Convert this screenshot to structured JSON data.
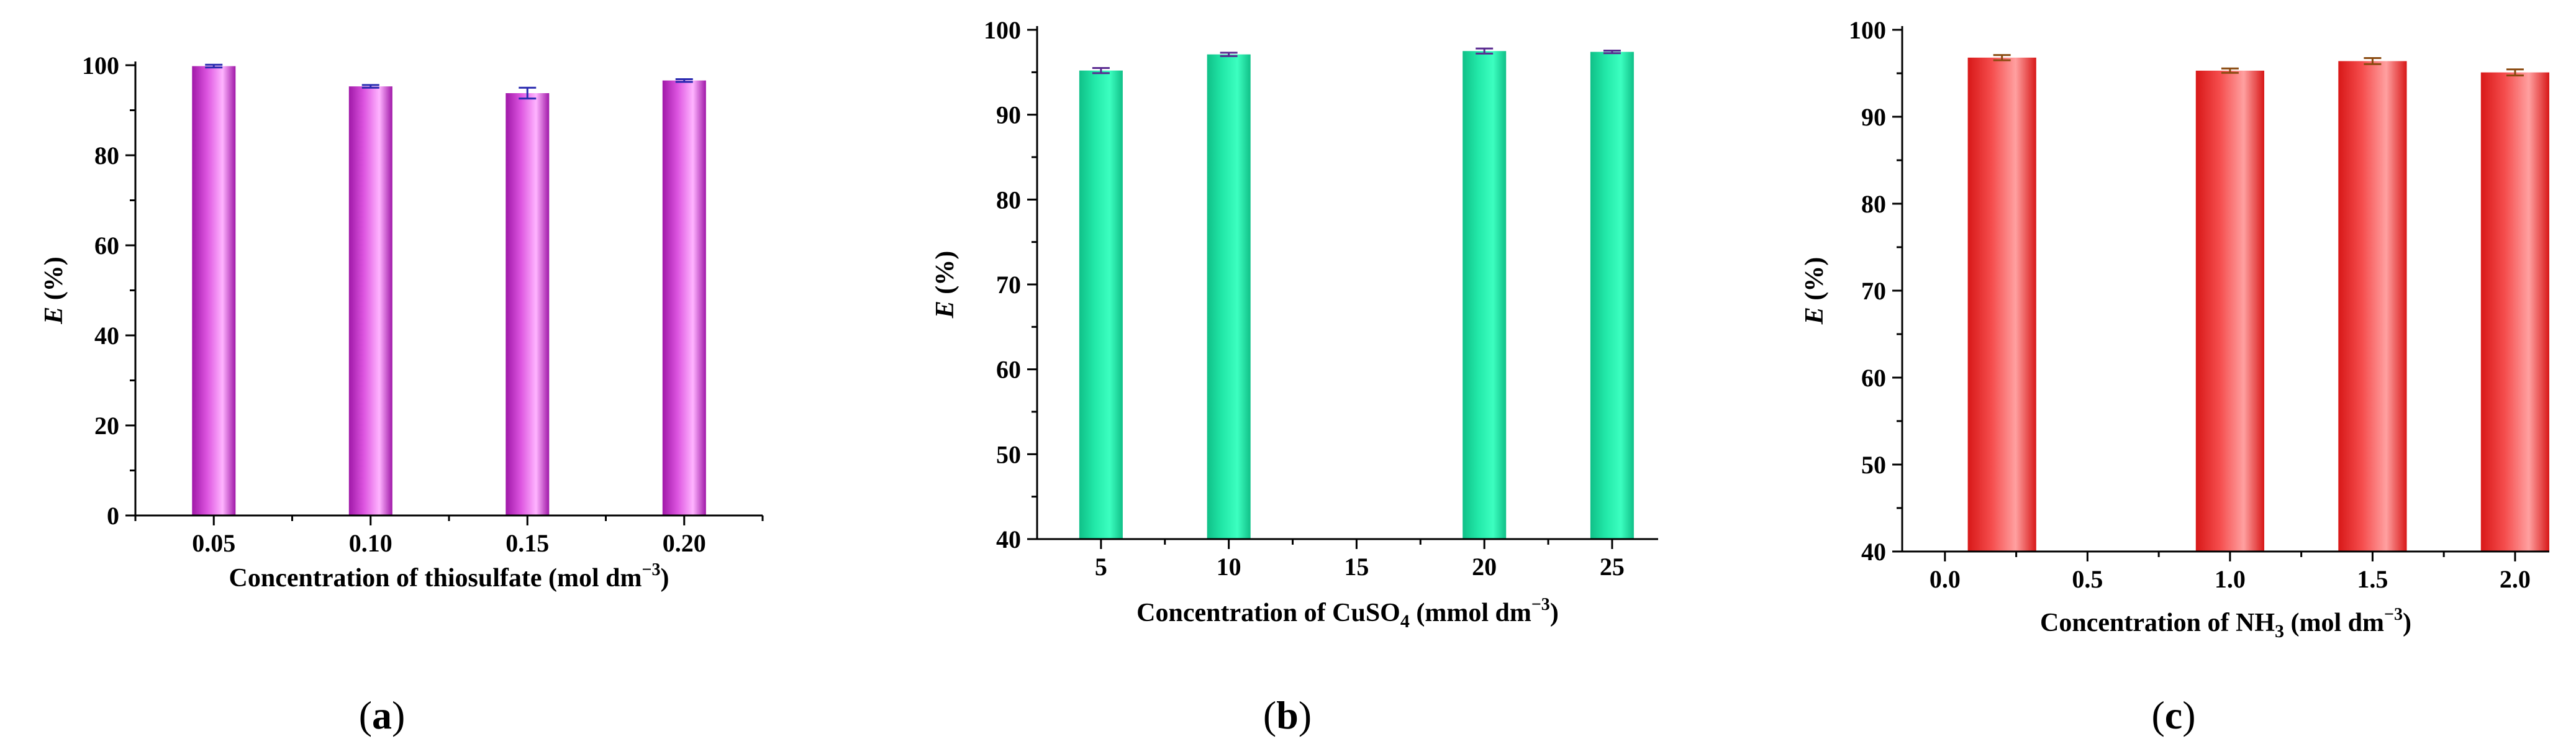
{
  "figure": {
    "panels": [
      {
        "id": "a",
        "label_open": "(",
        "label_letter": "a",
        "label_close": ")"
      },
      {
        "id": "b",
        "label_open": "(",
        "label_letter": "b",
        "label_close": ")"
      },
      {
        "id": "c",
        "label_open": "(",
        "label_letter": "c",
        "label_close": ")"
      }
    ]
  },
  "chart_data": [
    {
      "id": "a",
      "type": "bar",
      "xlabel": {
        "prefix": "Concentration of thiosulfate (mol dm",
        "superscript": "−3",
        "suffix": ")"
      },
      "ylabel": {
        "italic": "E",
        "rest": " (%)"
      },
      "x_scale": "categorical",
      "categories": [
        "0.05",
        "0.10",
        "0.15",
        "0.20"
      ],
      "values": [
        99.8,
        95.3,
        93.8,
        96.6
      ],
      "errors": [
        0.3,
        0.3,
        1.2,
        0.3
      ],
      "ylim": [
        0,
        100
      ],
      "yticks": [
        0,
        20,
        40,
        60,
        80,
        100
      ],
      "y_minor": 10,
      "bar_color": "#dd55e0",
      "bar_highlight": "#ffb4ff",
      "bar_dark": "#a018a8",
      "error_color": "#2a2ab0",
      "grid": false
    },
    {
      "id": "b",
      "type": "bar",
      "xlabel": {
        "prefix": "Concentration of CuSO",
        "subscript": "4",
        "mid": " (mmol dm",
        "superscript": "−3",
        "suffix": ")"
      },
      "ylabel": {
        "italic": "E",
        "rest": " (%)"
      },
      "x_scale": "numeric",
      "x": [
        5,
        10,
        20,
        25
      ],
      "values": [
        95.2,
        97.1,
        97.5,
        97.4
      ],
      "errors": [
        0.3,
        0.2,
        0.3,
        0.15
      ],
      "xlim": [
        2.5,
        26.8
      ],
      "xticks": [
        5,
        10,
        15,
        20,
        25
      ],
      "bar_width": 1.7,
      "ylim": [
        40,
        100
      ],
      "yticks": [
        40,
        50,
        60,
        70,
        80,
        90,
        100
      ],
      "y_minor": 5,
      "bar_color": "#22e8a8",
      "bar_highlight": "#3cffc0",
      "bar_dark": "#10c088",
      "error_color": "#5a2a90",
      "grid": false
    },
    {
      "id": "c",
      "type": "bar",
      "xlabel": {
        "prefix": "Concentration of NH",
        "subscript": "3",
        "mid": " (mol dm",
        "superscript": "−3",
        "suffix": ")"
      },
      "ylabel": {
        "italic": "E",
        "rest": " (%)"
      },
      "x_scale": "numeric",
      "x": [
        0.2,
        1.0,
        1.5,
        2.0
      ],
      "values": [
        96.8,
        95.3,
        96.4,
        95.1
      ],
      "errors": [
        0.3,
        0.25,
        0.35,
        0.35
      ],
      "xlim": [
        -0.15,
        2.12
      ],
      "xticks": [
        0.0,
        0.5,
        1.0,
        1.5,
        2.0
      ],
      "xtick_labels": [
        "0.0",
        "0.5",
        "1.0",
        "1.5",
        "2.0"
      ],
      "bar_width": 0.24,
      "ylim": [
        40,
        100
      ],
      "yticks": [
        40,
        50,
        60,
        70,
        80,
        90,
        100
      ],
      "y_minor": 5,
      "bar_color": "#f54d4d",
      "bar_highlight": "#ffa0a0",
      "bar_dark": "#d81818",
      "error_color": "#8a4a10",
      "grid": false
    }
  ]
}
